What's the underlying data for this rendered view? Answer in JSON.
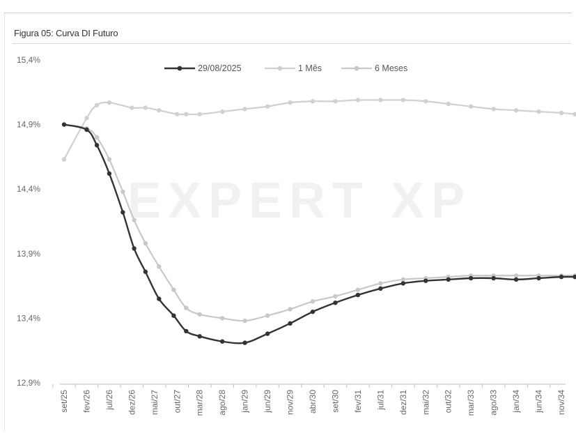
{
  "chart_data": {
    "type": "line",
    "title": "Figura 05: Curva DI Futuro",
    "xlabel": "",
    "ylabel": "",
    "ylim": [
      12.9,
      15.4
    ],
    "yticks": [
      "15,4%",
      "14,9%",
      "14,4%",
      "13,9%",
      "13,4%",
      "12,9%"
    ],
    "ytick_values": [
      15.4,
      14.9,
      14.4,
      13.9,
      13.4,
      12.9
    ],
    "categories": [
      "set/25",
      "fev/26",
      "jul/26",
      "dez/26",
      "mai/27",
      "out/27",
      "mar/28",
      "ago/28",
      "jan/29",
      "jun/29",
      "nov/29",
      "abr/30",
      "set/30",
      "fev/31",
      "jul/31",
      "dez/31",
      "mai/32",
      "out/32",
      "mar/33",
      "ago/33",
      "jan/34",
      "jun/34",
      "nov/34"
    ],
    "legend_position": "top",
    "grid": false,
    "watermark": "EXPERT XP",
    "colors": {
      "series_0": "#333333",
      "series_1": "#d0d0d0",
      "series_2": "#c8c8c8"
    },
    "series": [
      {
        "name": "29/08/2025",
        "points": [
          [
            0,
            14.9
          ],
          [
            1,
            14.86
          ],
          [
            1.45,
            14.74
          ],
          [
            2,
            14.52
          ],
          [
            2.6,
            14.22
          ],
          [
            3.1,
            13.94
          ],
          [
            3.6,
            13.76
          ],
          [
            4.2,
            13.55
          ],
          [
            4.85,
            13.42
          ],
          [
            5.4,
            13.3
          ],
          [
            6,
            13.26
          ],
          [
            7,
            13.22
          ],
          [
            8,
            13.21
          ],
          [
            9,
            13.28
          ],
          [
            10,
            13.36
          ],
          [
            11,
            13.45
          ],
          [
            12,
            13.52
          ],
          [
            13,
            13.58
          ],
          [
            14,
            13.63
          ],
          [
            15,
            13.67
          ],
          [
            16,
            13.69
          ],
          [
            17,
            13.7
          ],
          [
            18,
            13.71
          ],
          [
            19,
            13.71
          ],
          [
            20,
            13.7
          ],
          [
            21,
            13.71
          ],
          [
            22,
            13.72
          ],
          [
            22.6,
            13.72
          ]
        ]
      },
      {
        "name": "1 Mês",
        "points": [
          [
            0,
            14.63
          ],
          [
            1,
            14.95
          ],
          [
            1.45,
            15.05
          ],
          [
            2,
            15.07
          ],
          [
            3,
            15.03
          ],
          [
            3.6,
            15.03
          ],
          [
            4.2,
            15.01
          ],
          [
            5,
            14.98
          ],
          [
            5.4,
            14.98
          ],
          [
            6,
            14.98
          ],
          [
            7,
            15.0
          ],
          [
            8,
            15.02
          ],
          [
            9,
            15.04
          ],
          [
            10,
            15.07
          ],
          [
            11,
            15.08
          ],
          [
            12,
            15.08
          ],
          [
            13,
            15.09
          ],
          [
            14,
            15.09
          ],
          [
            15,
            15.09
          ],
          [
            16,
            15.08
          ],
          [
            17,
            15.06
          ],
          [
            18,
            15.04
          ],
          [
            19,
            15.02
          ],
          [
            20,
            15.01
          ],
          [
            21,
            15.0
          ],
          [
            22,
            14.99
          ],
          [
            22.6,
            14.98
          ]
        ]
      },
      {
        "name": "6 Meses",
        "points": [
          [
            0,
            14.9
          ],
          [
            1,
            14.87
          ],
          [
            1.45,
            14.8
          ],
          [
            2,
            14.63
          ],
          [
            2.6,
            14.38
          ],
          [
            3.1,
            14.16
          ],
          [
            3.6,
            13.98
          ],
          [
            4.2,
            13.8
          ],
          [
            4.85,
            13.62
          ],
          [
            5.4,
            13.48
          ],
          [
            6,
            13.43
          ],
          [
            7,
            13.4
          ],
          [
            8,
            13.38
          ],
          [
            9,
            13.42
          ],
          [
            10,
            13.47
          ],
          [
            11,
            13.53
          ],
          [
            12,
            13.57
          ],
          [
            13,
            13.62
          ],
          [
            14,
            13.67
          ],
          [
            15,
            13.7
          ],
          [
            16,
            13.71
          ],
          [
            17,
            13.72
          ],
          [
            18,
            13.73
          ],
          [
            19,
            13.73
          ],
          [
            20,
            13.73
          ],
          [
            21,
            13.73
          ],
          [
            22,
            13.73
          ],
          [
            22.6,
            13.73
          ]
        ]
      }
    ]
  }
}
